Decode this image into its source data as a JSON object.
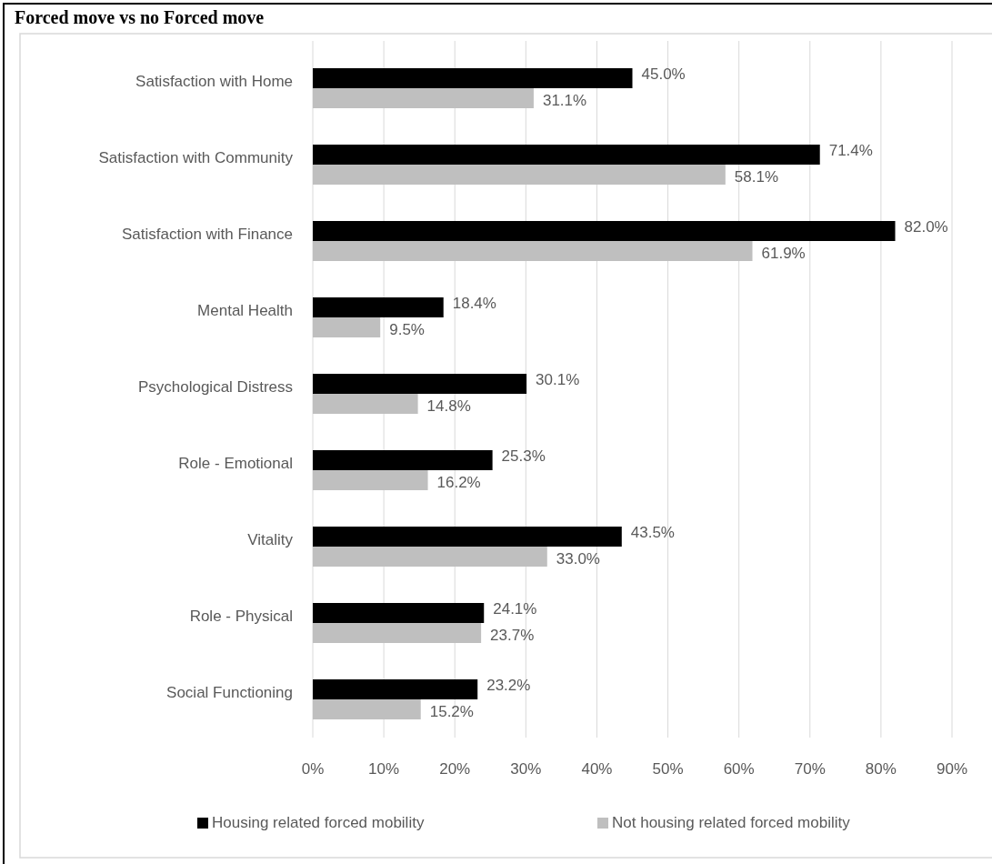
{
  "chart_data": {
    "type": "bar",
    "orientation": "horizontal",
    "title": "Forced move vs no Forced move",
    "categories": [
      "Satisfaction with Home",
      "Satisfaction with Community",
      "Satisfaction with Finance",
      "Mental Health",
      "Psychological Distress",
      "Role - Emotional",
      "Vitality",
      "Role - Physical",
      "Social Functioning"
    ],
    "series": [
      {
        "name": "Housing related forced mobility",
        "color": "#000000",
        "values": [
          45.0,
          71.4,
          82.0,
          18.4,
          30.1,
          25.3,
          43.5,
          24.1,
          23.2
        ],
        "value_labels": [
          "45.0%",
          "71.4%",
          "82.0%",
          "18.4%",
          "30.1%",
          "25.3%",
          "43.5%",
          "24.1%",
          "23.2%"
        ]
      },
      {
        "name": "Not housing related forced mobility",
        "color": "#bfbfbf",
        "values": [
          31.1,
          58.1,
          61.9,
          9.5,
          14.8,
          16.2,
          33.0,
          23.7,
          15.2
        ],
        "value_labels": [
          "31.1%",
          "58.1%",
          "61.9%",
          "9.5%",
          "14.8%",
          "16.2%",
          "33.0%",
          "23.7%",
          "15.2%"
        ]
      }
    ],
    "xlim": [
      0,
      90
    ],
    "xticks": [
      {
        "value": 0,
        "label": "0%"
      },
      {
        "value": 10,
        "label": "10%"
      },
      {
        "value": 20,
        "label": "20%"
      },
      {
        "value": 30,
        "label": "30%"
      },
      {
        "value": 40,
        "label": "40%"
      },
      {
        "value": 50,
        "label": "50%"
      },
      {
        "value": 60,
        "label": "60%"
      },
      {
        "value": 70,
        "label": "70%"
      },
      {
        "value": 80,
        "label": "80%"
      },
      {
        "value": 90,
        "label": "90%"
      }
    ],
    "grid": "x",
    "legend": "bottom"
  }
}
